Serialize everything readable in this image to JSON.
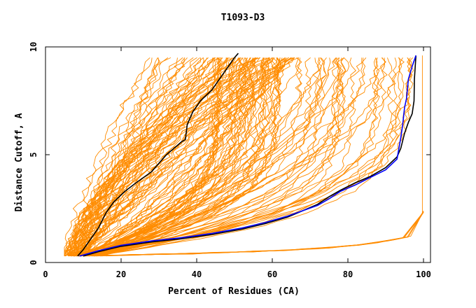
{
  "chart_data": {
    "type": "line",
    "title": "T1093-D3",
    "xlabel": "Percent of Residues (CA)",
    "ylabel": "Distance Cutoff, A",
    "xlim": [
      0,
      100
    ],
    "ylim": [
      0,
      10
    ],
    "xticks": [
      0,
      20,
      40,
      60,
      80,
      100
    ],
    "yticks": [
      0,
      5,
      10
    ],
    "grid": false,
    "legend": "none",
    "colors": {
      "background_models": "#ff8c00",
      "highlight_black": "#000000",
      "highlight_blue": "#0000ff",
      "axes": "#000000"
    },
    "series": [
      {
        "style": "highlight_black",
        "x": [
          8.5,
          10,
          12,
          14,
          16,
          18,
          21,
          24,
          28,
          30,
          32,
          34,
          36,
          37,
          37.5,
          39,
          41,
          44,
          46,
          48,
          50,
          51
        ],
        "y": [
          0.3,
          0.6,
          1.1,
          1.6,
          2.3,
          2.8,
          3.3,
          3.7,
          4.2,
          4.6,
          5.0,
          5.3,
          5.6,
          5.7,
          6.4,
          7.0,
          7.5,
          8.0,
          8.5,
          9.0,
          9.5,
          9.7
        ]
      },
      {
        "style": "highlight_black",
        "x": [
          10,
          14,
          20,
          28,
          36,
          44,
          52,
          58,
          64,
          68,
          72,
          75,
          78,
          82,
          86,
          90,
          93,
          94,
          95,
          96,
          97,
          97.5,
          97.6,
          98
        ],
        "y": [
          0.3,
          0.5,
          0.75,
          0.95,
          1.1,
          1.3,
          1.55,
          1.8,
          2.1,
          2.4,
          2.7,
          3.05,
          3.35,
          3.7,
          4.0,
          4.4,
          4.9,
          5.3,
          6.0,
          6.5,
          6.9,
          7.5,
          8.5,
          9.6
        ]
      },
      {
        "style": "highlight_blue",
        "x": [
          9,
          14,
          20,
          28,
          36,
          44,
          52,
          58,
          64,
          68,
          72,
          75,
          78,
          82,
          86,
          90,
          93,
          94,
          94.5,
          95,
          95.5,
          96,
          97,
          98
        ],
        "y": [
          0.3,
          0.55,
          0.8,
          1.0,
          1.15,
          1.35,
          1.6,
          1.85,
          2.15,
          2.4,
          2.65,
          2.95,
          3.3,
          3.6,
          3.95,
          4.3,
          4.8,
          5.8,
          6.4,
          7.2,
          7.6,
          8.5,
          9.1,
          9.6
        ]
      }
    ]
  }
}
